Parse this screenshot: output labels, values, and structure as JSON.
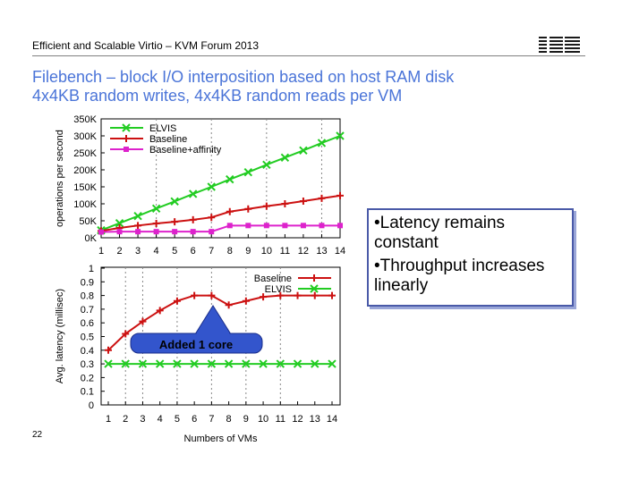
{
  "header": {
    "text": "Efficient and Scalable Virtio – KVM Forum 2013",
    "logo": "IBM"
  },
  "title": {
    "line1": "Filebench – block I/O interposition based on host RAM disk",
    "line2": "4x4KB random writes, 4x4KB random reads per VM"
  },
  "callout": {
    "line1": "•Latency remains constant",
    "line2": "•Throughput increases linearly"
  },
  "page_number": "22",
  "colors": {
    "title": "#4a74d8",
    "elvis": "#22cc22",
    "baseline": "#cc1111",
    "affinity": "#dd22cc",
    "annotation": "#3355cc"
  },
  "chart_data": [
    {
      "type": "line",
      "ylabel": "operations per second",
      "xlabel": "",
      "x": [
        1,
        2,
        3,
        4,
        5,
        6,
        7,
        8,
        9,
        10,
        11,
        12,
        13,
        14
      ],
      "yticks": [
        "0K",
        "50K",
        "100K",
        "150K",
        "200K",
        "250K",
        "300K",
        "350K"
      ],
      "ylim": [
        0,
        350000
      ],
      "grid": "vertical dashed at x=4,7,10,13",
      "legend": "top-left",
      "series": [
        {
          "name": "ELVIS",
          "values": [
            22000,
            43000,
            64000,
            86000,
            107000,
            129000,
            150000,
            172000,
            193000,
            215000,
            236000,
            257000,
            279000,
            300000
          ]
        },
        {
          "name": "Baseline",
          "values": [
            20000,
            29000,
            36000,
            42000,
            47000,
            53000,
            60000,
            77000,
            85000,
            93000,
            100000,
            108000,
            116000,
            124000
          ]
        },
        {
          "name": "Baseline+affinity",
          "values": [
            17000,
            18000,
            18000,
            18000,
            18000,
            18000,
            18000,
            36000,
            36000,
            36000,
            36000,
            36000,
            36000,
            36000
          ]
        }
      ]
    },
    {
      "type": "line",
      "ylabel": "Avg. latency (millisec)",
      "xlabel": "Numbers of VMs",
      "x": [
        1,
        2,
        3,
        4,
        5,
        6,
        7,
        8,
        9,
        10,
        11,
        12,
        13,
        14
      ],
      "yticks": [
        "0",
        "0.1",
        "0.2",
        "0.3",
        "0.4",
        "0.5",
        "0.6",
        "0.7",
        "0.8",
        "0.9",
        "1"
      ],
      "ylim": [
        0,
        1
      ],
      "grid": "vertical dashed at x=2,3,5,7,9,11",
      "legend": "top-right",
      "annotation": "Added 1 core",
      "series": [
        {
          "name": "Baseline",
          "values": [
            0.4,
            0.52,
            0.61,
            0.69,
            0.76,
            0.8,
            0.8,
            0.73,
            0.76,
            0.79,
            0.8,
            0.8,
            0.8,
            0.8
          ]
        },
        {
          "name": "ELVIS",
          "values": [
            0.3,
            0.3,
            0.3,
            0.3,
            0.3,
            0.3,
            0.3,
            0.3,
            0.3,
            0.3,
            0.3,
            0.3,
            0.3,
            0.3
          ]
        }
      ]
    }
  ]
}
